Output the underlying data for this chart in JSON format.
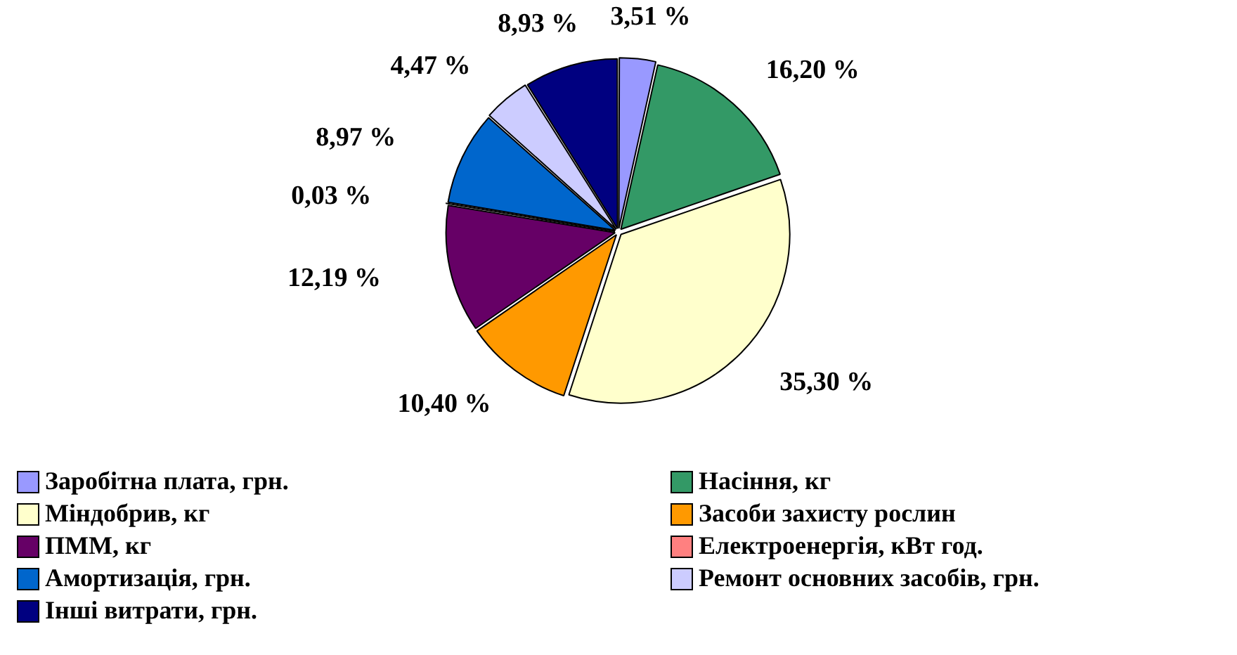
{
  "chart_data": {
    "type": "pie",
    "categories": [
      "Заробітна плата, грн.",
      "Насіння, кг",
      "Міндобрив, кг",
      "Засоби захисту рослин",
      "ПММ, кг",
      "Електроенергія, кВт год.",
      "Амортизація, грн.",
      "Ремонт основних засобів, грн.",
      "Інші витрати, грн."
    ],
    "values": [
      3.51,
      16.2,
      35.3,
      10.4,
      12.19,
      0.03,
      8.97,
      4.47,
      8.93
    ],
    "value_labels": [
      "3,51 %",
      "16,20 %",
      "35,30 %",
      "10,40 %",
      "12,19 %",
      "0,03 %",
      "8,97 %",
      "4,47 %",
      "8,93 %"
    ],
    "colors": [
      "#9999ff",
      "#339966",
      "#ffffcc",
      "#ff9900",
      "#660066",
      "#ff8080",
      "#0066cc",
      "#ccccff",
      "#000080"
    ],
    "legend": "bottom"
  }
}
